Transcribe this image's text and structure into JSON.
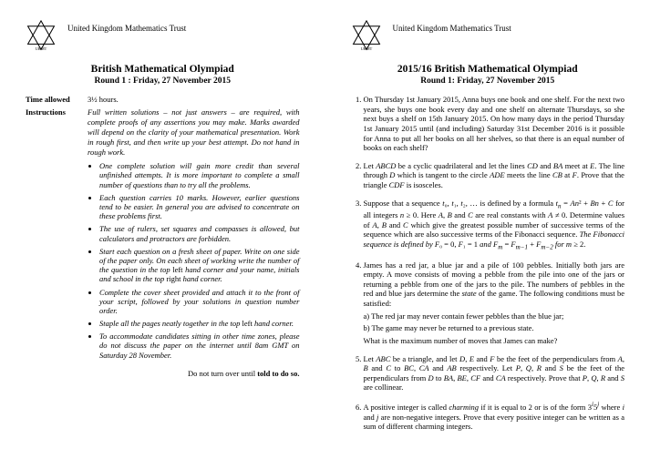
{
  "trust": "United Kingdom Mathematics Trust",
  "logo_label": "UKMT",
  "left": {
    "title": "British Mathematical Olympiad",
    "round": "Round 1 : Friday, 27 November 2015",
    "time_label": "Time allowed",
    "time_value": "3½ hours.",
    "inst_label": "Instructions",
    "inst_intro": "Full written solutions – not just answers – are required, with complete proofs of any assertions you may make. Marks awarded will depend on the clarity of your mathematical presentation. Work in rough first, and then write up your best attempt. Do not hand in rough work.",
    "bullets": [
      "One complete solution will gain more credit than several unfinished attempts. It is more important to complete a small number of questions than to try all the problems.",
      "Each question carries 10 marks. However, earlier questions tend to be easier. In general you are advised to concentrate on these problems first.",
      "The use of rulers, set squares and compasses is allowed, but calculators and protractors are forbidden.",
      "Start each question on a fresh sheet of paper. Write on one side of the paper only. On each sheet of working write the number of the question in the top <span class='normal'>left</span> hand corner and your name, initials and school in the top <span class='normal'>right</span> hand corner.",
      "Complete the cover sheet provided and attach it to the front of your script, followed by your solutions in question number order.",
      "Staple all the pages neatly together in the top <span class='normal'>left</span> hand corner.",
      "To accommodate candidates sitting in other time zones, please do not discuss the paper on the internet until 8am GMT on Saturday 28 November."
    ],
    "turnover_pre": "Do not turn over until ",
    "turnover_bold": "told to do so."
  },
  "right": {
    "title": "2015/16 British Mathematical Olympiad",
    "round": "Round 1: Friday, 27 November 2015",
    "problems": [
      "On Thursday 1st January 2015, Anna buys one book and one shelf. For the next two years, she buys one book every day and one shelf on alternate Thursdays, so she next buys a shelf on 15th January 2015. On how many days in the period Thursday 1st January 2015 until (and including) Saturday 31st December 2016 is it possible for Anna to put all her books on all her shelves, so that there is an equal number of books on each shelf?",
      "Let <i>ABCD</i> be a cyclic quadrilateral and let the lines <i>CD</i> and <i>BA</i> meet at <i>E</i>. The line through <i>D</i> which is tangent to the circle <i>ADE</i> meets the line <i>CB</i> at <i>F</i>. Prove that the triangle <i>CDF</i> is isosceles.",
      "Suppose that a sequence <i>t</i>₀, <i>t</i>₁, <i>t</i>₂, … is defined by a formula <i>t<sub>n</sub></i> = <i>An</i>² + <i>Bn</i> + <i>C</i> for all integers <i>n</i> ≥ 0. Here <i>A</i>, <i>B</i> and <i>C</i> are real constants with <i>A</i> ≠ 0. Determine values of <i>A</i>, <i>B</i> and <i>C</i> which give the greatest possible number of successive terms of the sequence which are also successive terms of the Fibonacci sequence. <i>The Fibonacci sequence is defined by F</i>₀ = 0, <i>F</i>₁ = 1 <i>and F<sub>m</sub></i> = <i>F<sub>m−1</sub></i> + <i>F<sub>m−2</sub> for m</i> ≥ 2.",
      "James has a red jar, a blue jar and a pile of 100 pebbles. Initially both jars are empty. A move consists of moving a pebble from the pile into one of the jars or returning a pebble from one of the jars to the pile. The numbers of pebbles in the red and blue jars determine the <i>state</i> of the game. The following conditions must be satisfied:<div class='sub'>a) The red jar may never contain fewer pebbles than the blue jar;</div><div class='sub'>b) The game may never be returned to a previous state.</div><div style='margin-top:3px'>What is the maximum number of moves that James can make?</div>",
      "Let <i>ABC</i> be a triangle, and let <i>D</i>, <i>E</i> and <i>F</i> be the feet of the perpendiculars from <i>A</i>, <i>B</i> and <i>C</i> to <i>BC</i>, <i>CA</i> and <i>AB</i> respectively. Let <i>P</i>, <i>Q</i>, <i>R</i> and <i>S</i> be the feet of the perpendiculars from <i>D</i> to <i>BA</i>, <i>BE</i>, <i>CF</i> and <i>CA</i> respectively. Prove that <i>P</i>, <i>Q</i>, <i>R</i> and <i>S</i> are collinear.",
      "A positive integer is called <i>charming</i> if it is equal to 2 or is of the form 3<i><sup>i</sup></i>5<i><sup>j</sup></i> where <i>i</i> and <i>j</i> are non-negative integers. Prove that every positive integer can be written as a sum of different charming integers."
    ]
  }
}
